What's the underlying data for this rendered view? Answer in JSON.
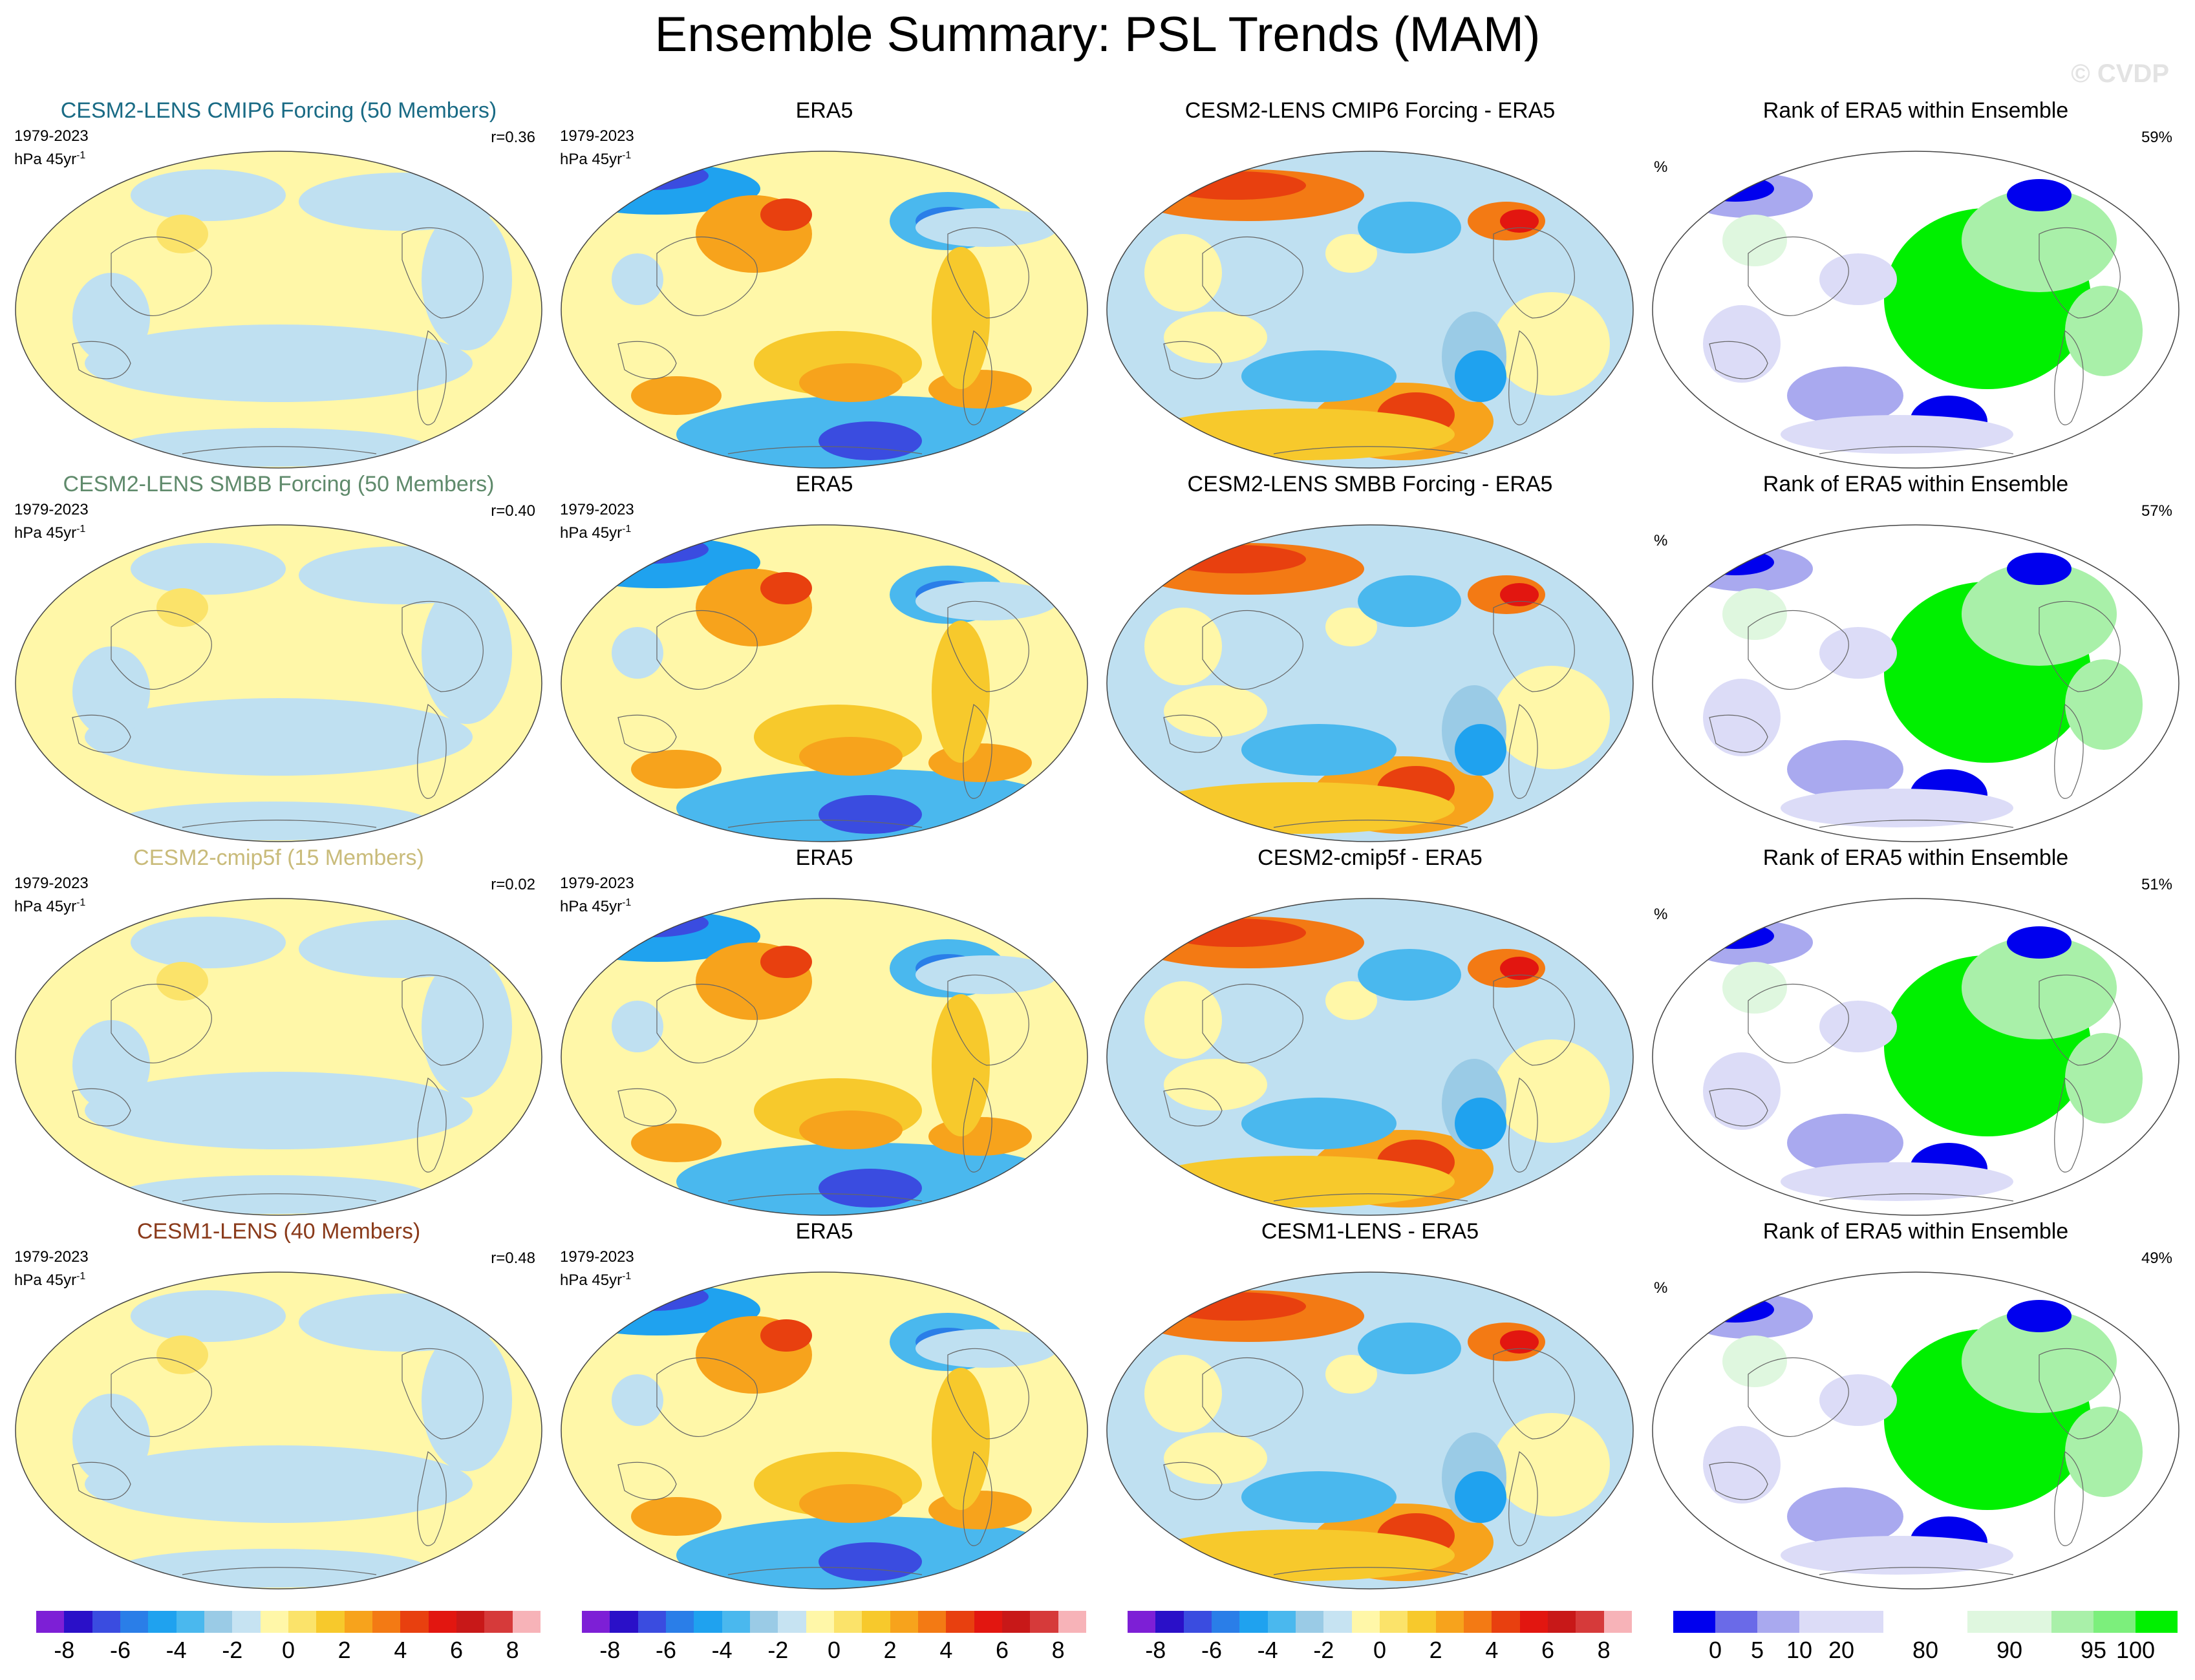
{
  "title": "Ensemble Summary: PSL Trends (MAM)",
  "watermark": "© CVDP",
  "rows": [
    {
      "model": {
        "title": "CESM2-LENS CMIP6 Forcing (50 Members)",
        "title_color": "#1a6b85",
        "period": "1979-2023",
        "units": "hPa 45yr",
        "units_exp": "-1",
        "r": "r=0.36"
      },
      "obs": {
        "title": "ERA5",
        "period": "1979-2023",
        "units": "hPa 45yr",
        "units_exp": "-1"
      },
      "diff": {
        "title": "CESM2-LENS CMIP6 Forcing - ERA5"
      },
      "rank": {
        "title": "Rank of ERA5 within Ensemble",
        "unit": "%",
        "pct": "59%"
      }
    },
    {
      "model": {
        "title": "CESM2-LENS SMBB Forcing (50 Members)",
        "title_color": "#5f8a6b",
        "period": "1979-2023",
        "units": "hPa 45yr",
        "units_exp": "-1",
        "r": "r=0.40"
      },
      "obs": {
        "title": "ERA5",
        "period": "1979-2023",
        "units": "hPa 45yr",
        "units_exp": "-1"
      },
      "diff": {
        "title": "CESM2-LENS SMBB Forcing - ERA5"
      },
      "rank": {
        "title": "Rank of ERA5 within Ensemble",
        "unit": "%",
        "pct": "57%"
      }
    },
    {
      "model": {
        "title": "CESM2-cmip5f (15 Members)",
        "title_color": "#c9bb7a",
        "period": "1979-2023",
        "units": "hPa 45yr",
        "units_exp": "-1",
        "r": "r=0.02"
      },
      "obs": {
        "title": "ERA5",
        "period": "1979-2023",
        "units": "hPa 45yr",
        "units_exp": "-1"
      },
      "diff": {
        "title": "CESM2-cmip5f - ERA5"
      },
      "rank": {
        "title": "Rank of ERA5 within Ensemble",
        "unit": "%",
        "pct": "51%"
      }
    },
    {
      "model": {
        "title": "CESM1-LENS (40 Members)",
        "title_color": "#8a3a1a",
        "period": "1979-2023",
        "units": "hPa 45yr",
        "units_exp": "-1",
        "r": "r=0.48"
      },
      "obs": {
        "title": "ERA5",
        "period": "1979-2023",
        "units": "hPa 45yr",
        "units_exp": "-1"
      },
      "diff": {
        "title": "CESM1-LENS - ERA5"
      },
      "rank": {
        "title": "Rank of ERA5 within Ensemble",
        "unit": "%",
        "pct": "49%"
      }
    }
  ],
  "colorbars": {
    "trend": {
      "colors": [
        "#7d1fd6",
        "#2a10c8",
        "#3a4ce0",
        "#2a7ee8",
        "#1fa2ef",
        "#4ab8ee",
        "#9acbe6",
        "#c6e3f2",
        "#fff7a8",
        "#fbe36a",
        "#f7c92c",
        "#f7a31c",
        "#f37a14",
        "#e8400f",
        "#e21610",
        "#c81818",
        "#d63a3a",
        "#f7b3b8"
      ],
      "ticks": [
        "-8",
        "-6",
        "-4",
        "-2",
        "0",
        "2",
        "4",
        "6",
        "8"
      ]
    },
    "rank": {
      "colors": [
        "#0000ee",
        "#6a6ae8",
        "#a9a9ef",
        "#dcdcf7",
        "#dcdcf7",
        "#ffffff",
        "#ffffff",
        "#dff7df",
        "#dff7df",
        "#a9f0a9",
        "#7cef7c",
        "#00f000"
      ],
      "ticks": [
        "0",
        "5",
        "10",
        "20",
        "80",
        "90",
        "95",
        "100"
      ]
    }
  }
}
